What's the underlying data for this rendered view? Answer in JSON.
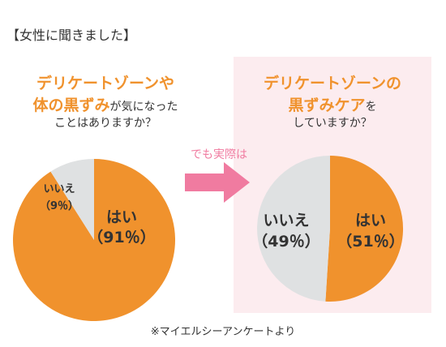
{
  "header": {
    "label": "【女性に聞きました】"
  },
  "left": {
    "question": {
      "line1": "デリケートゾーンや",
      "line2_orange": "体の黒ずみ",
      "line2_plain": "が気になった",
      "line3": "ことはありますか？"
    }
  },
  "arrow": {
    "label": "でも実際は"
  },
  "right": {
    "question": {
      "line1": "デリケートゾーンの",
      "line2_orange": "黒ずみケア",
      "line2_plain": "を",
      "line3": "していますか？"
    }
  },
  "footer": {
    "note": "※マイエルシーアンケートより"
  },
  "colors": {
    "orange": "#f0922d",
    "gray": "#dfe1e2",
    "pink_panel": "#fcecef",
    "pink_arrow": "#f07ba0"
  },
  "chart_data": [
    {
      "type": "pie",
      "slices": [
        {
          "label": "はい",
          "pct_label": "（91％）",
          "value": 91,
          "color": "#f0922d"
        },
        {
          "label": "いいえ",
          "pct_label": "（9％）",
          "value": 9,
          "color": "#dfe1e2"
        }
      ]
    },
    {
      "type": "pie",
      "slices": [
        {
          "label": "はい",
          "pct_label": "（51％）",
          "value": 51,
          "color": "#f0922d"
        },
        {
          "label": "いいえ",
          "pct_label": "（49％）",
          "value": 49,
          "color": "#dfe1e2"
        }
      ]
    }
  ]
}
